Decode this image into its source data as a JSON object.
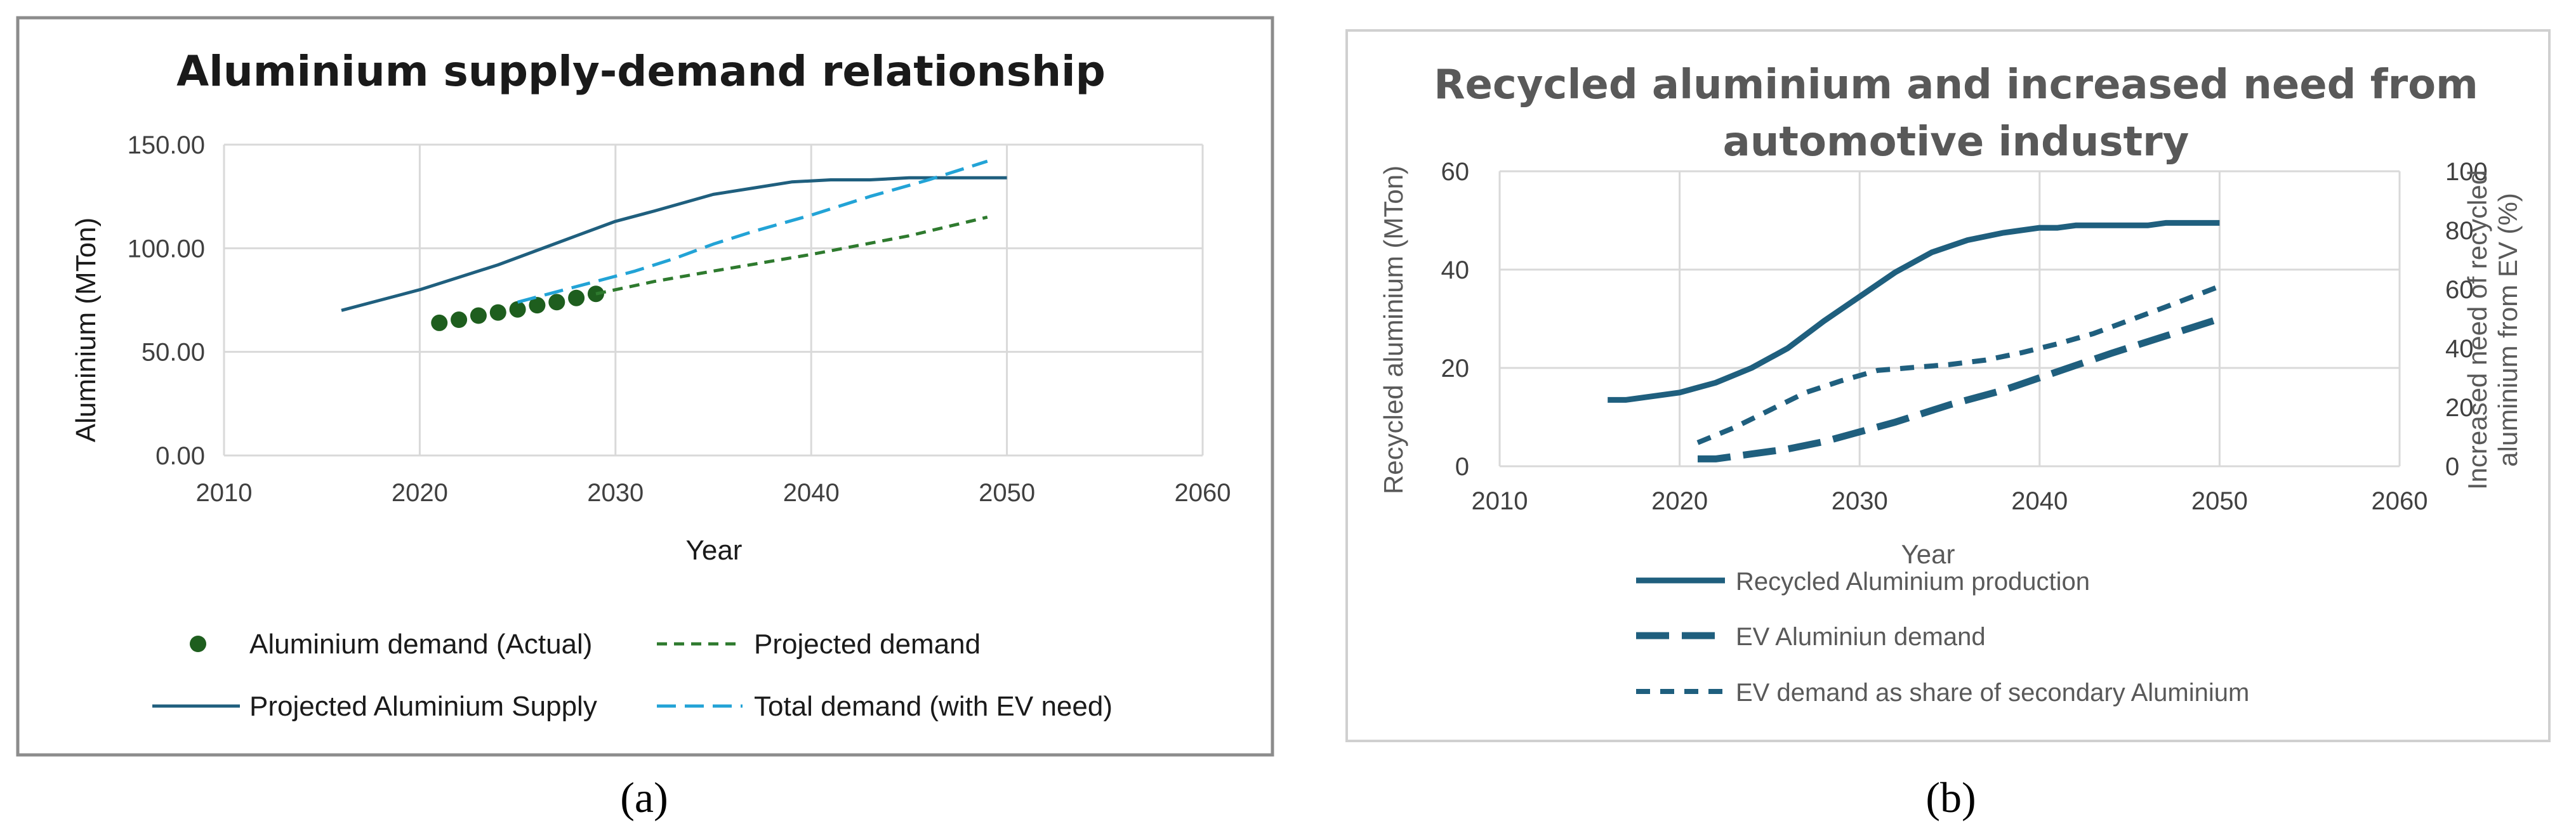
{
  "panels": [
    {
      "label": "(a)"
    },
    {
      "label": "(b)"
    }
  ],
  "colors": {
    "dark_blue": "#1f5f7e",
    "light_blue": "#22a3d6",
    "green": "#2e7a2e",
    "dot_green": "#1e5e1e",
    "text": "#404040",
    "grid": "#d9d9d9",
    "frame_a": "#8c8c8c",
    "frame_b": "#d0d0d0"
  },
  "chart_data": [
    {
      "type": "line",
      "title": "Aluminium supply-demand relationship",
      "xlabel": "Year",
      "ylabel": "Aluminium (MTon)",
      "xlim": [
        2010,
        2060
      ],
      "ylim": [
        0,
        150
      ],
      "xticks": [
        "2010",
        "2020",
        "2030",
        "2040",
        "2050",
        "2060"
      ],
      "yticks": [
        "0.00",
        "50.00",
        "100.00",
        "150.00"
      ],
      "grid": true,
      "legend_position": "bottom",
      "series": [
        {
          "name": "Aluminium demand (Actual)",
          "style": "markers",
          "x": [
            2021,
            2022,
            2023,
            2024,
            2025,
            2026,
            2027,
            2028,
            2029
          ],
          "y": [
            64,
            65.5,
            67.5,
            69,
            70.5,
            72.5,
            74,
            76,
            78
          ]
        },
        {
          "name": "Projected demand",
          "style": "dashed-short",
          "x": [
            2029,
            2030,
            2032,
            2035,
            2040,
            2045,
            2049
          ],
          "y": [
            78,
            80,
            84,
            89,
            97,
            106,
            115
          ]
        },
        {
          "name": "Projected Aluminium Supply",
          "style": "solid",
          "x": [
            2016,
            2018,
            2020,
            2022,
            2024,
            2026,
            2028,
            2030,
            2032,
            2035,
            2037,
            2039,
            2041,
            2043,
            2045,
            2050
          ],
          "y": [
            70,
            75,
            80,
            86,
            92,
            99,
            106,
            113,
            118,
            126,
            129,
            132,
            133,
            133,
            134,
            134
          ]
        },
        {
          "name": "Total demand (with EV need)",
          "style": "dashed-long",
          "x": [
            2025,
            2027,
            2029,
            2031,
            2033,
            2035,
            2037,
            2040,
            2043,
            2046,
            2049
          ],
          "y": [
            74,
            79,
            84,
            89,
            95,
            102,
            108,
            116,
            125,
            133,
            142
          ]
        }
      ]
    },
    {
      "type": "line",
      "title": "Recycled aluminium and increased need from automotive industry",
      "title_lines": [
        "Recycled aluminium and increased need from",
        "automotive industry"
      ],
      "xlabel": "Year",
      "ylabel_left": "Recycled aluminium (MTon)",
      "ylabel_right_lines": [
        "Increased need of recycled",
        "aluminium from EV (%)"
      ],
      "xlim": [
        2010,
        2060
      ],
      "ylim_left": [
        0,
        60
      ],
      "ylim_right": [
        0,
        100
      ],
      "xticks": [
        "2010",
        "2020",
        "2030",
        "2040",
        "2050",
        "2060"
      ],
      "yticks_left": [
        "0",
        "20",
        "40",
        "60"
      ],
      "yticks_right": [
        "0",
        "20",
        "40",
        "60",
        "80",
        "100"
      ],
      "grid": true,
      "legend_position": "bottom",
      "series": [
        {
          "name": "Recycled Aluminium production",
          "axis": "left",
          "style": "solid",
          "x": [
            2016,
            2017,
            2020,
            2022,
            2024,
            2026,
            2028,
            2030,
            2032,
            2034,
            2036,
            2038,
            2040,
            2041,
            2042,
            2044,
            2046,
            2047,
            2050
          ],
          "y": [
            13.5,
            13.5,
            15,
            17,
            20,
            24,
            29.5,
            34.5,
            39.5,
            43.5,
            46,
            47.5,
            48.5,
            48.5,
            49,
            49,
            49,
            49.5,
            49.5
          ]
        },
        {
          "name": "EV Aluminiun demand",
          "axis": "left",
          "style": "dashed-long",
          "x": [
            2021,
            2022,
            2024,
            2026,
            2028,
            2030,
            2032,
            2035,
            2038,
            2040,
            2042,
            2044,
            2047,
            2050
          ],
          "y": [
            1.5,
            1.5,
            2.5,
            3.5,
            5,
            7,
            9,
            12.5,
            15.5,
            18,
            20.5,
            23,
            26.5,
            30
          ]
        },
        {
          "name": "EV demand as share of secondary Aluminium",
          "axis": "right",
          "style": "dashed-short",
          "x": [
            2021,
            2023,
            2025,
            2027,
            2029,
            2031,
            2033,
            2035,
            2037,
            2039,
            2041,
            2043,
            2045,
            2047,
            2050
          ],
          "y": [
            8,
            13,
            19,
            25,
            29,
            32.5,
            33.5,
            34.5,
            36,
            38.5,
            41.5,
            45,
            49.5,
            54,
            61
          ]
        }
      ]
    }
  ]
}
